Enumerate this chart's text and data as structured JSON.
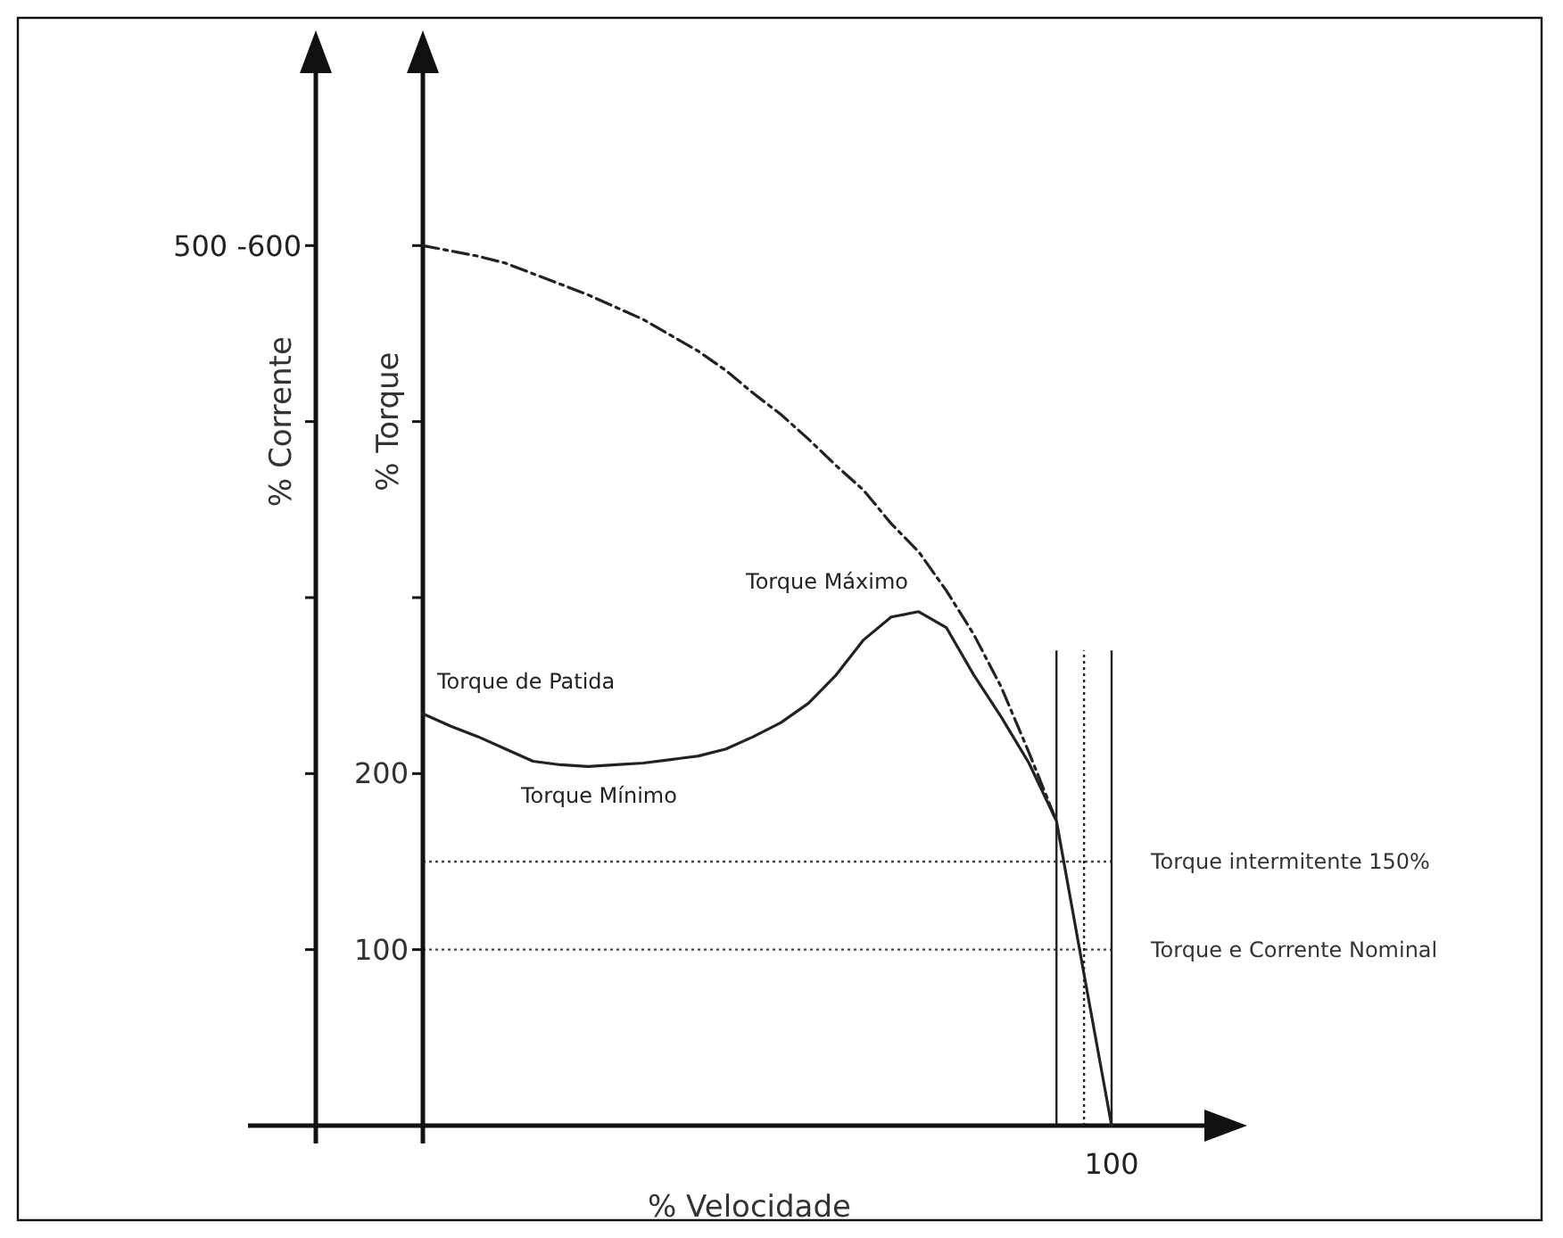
{
  "chart_data": {
    "type": "line",
    "xlabel": "% Velocidade",
    "ylabel": "% Torque",
    "y2label": "% Corrente",
    "categories": [
      null,
      null,
      null,
      null,
      null,
      null,
      null,
      null,
      null,
      null,
      null,
      null,
      null,
      null,
      null,
      null,
      null,
      null,
      null,
      null,
      null,
      null,
      null,
      null,
      null,
      null
    ],
    "ylim": [
      0,
      600
    ],
    "yticks": [
      100,
      200,
      {
        "value": 300,
        "label": null
      },
      {
        "value": 400,
        "label": null
      },
      {
        "value": 500,
        "label": null
      }
    ],
    "series": [
      {
        "color": "#222222",
        "line_style": "solid",
        "values": [
          234,
          227,
          221,
          214,
          207,
          205,
          204,
          205,
          206,
          208,
          210,
          214,
          221,
          229,
          240,
          256,
          276,
          289,
          292,
          283,
          256,
          232,
          206,
          173,
          86,
          0
        ]
      },
      {
        "color": "#222222",
        "line_style": "dashed",
        "values": [
          500,
          497,
          494,
          490,
          484,
          478,
          472,
          465,
          458,
          449,
          440,
          429,
          416,
          404,
          390,
          375,
          361,
          342,
          326,
          304,
          279,
          249,
          212,
          173,
          null,
          null
        ]
      }
    ],
    "ref_lines": [
      {
        "axis": "y",
        "value": 150,
        "label": "Torque intermitente 150%",
        "line_style": "dotted",
        "color": "#444444"
      },
      {
        "axis": "y",
        "value": 100,
        "label": "Torque e Corrente Nominal",
        "line_style": "dotted",
        "color": "#444444"
      }
    ],
    "annotations": [
      "Torque de Patida",
      "Torque Mínimo",
      "Torque Máximo",
      "100",
      "500 -600"
    ],
    "grid": false,
    "marker": "none"
  }
}
